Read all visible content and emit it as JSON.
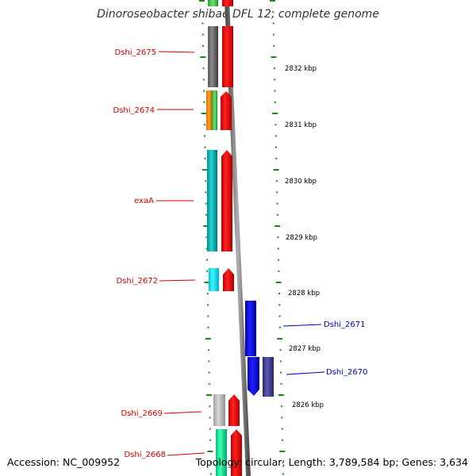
{
  "title": "Dinoroseobacter shibae DFL 12, complete genome",
  "footer": {
    "accession": "Accession: NC_009952",
    "summary": "Topology: circular; Length: 3,789,584 bp; Genes: 3,634"
  },
  "colors": {
    "forward_label": "#d40000",
    "reverse_label": "#0000cc",
    "tick": "#1a8a1a",
    "backbone": "#808080"
  },
  "scale_labels": [
    "2832 kbp",
    "2831 kbp",
    "2830 kbp",
    "2829 kbp",
    "2828 kbp",
    "2827 kbp",
    "2826 kbp"
  ],
  "genes": [
    {
      "label": "Dshi_2675",
      "strand": "forward"
    },
    {
      "label": "Dshi_2674",
      "strand": "forward"
    },
    {
      "label": "exaA",
      "strand": "forward"
    },
    {
      "label": "Dshi_2672",
      "strand": "forward"
    },
    {
      "label": "Dshi_2671",
      "strand": "reverse"
    },
    {
      "label": "Dshi_2670",
      "strand": "reverse"
    },
    {
      "label": "Dshi_2669",
      "strand": "forward"
    },
    {
      "label": "Dshi_2668",
      "strand": "forward"
    }
  ]
}
